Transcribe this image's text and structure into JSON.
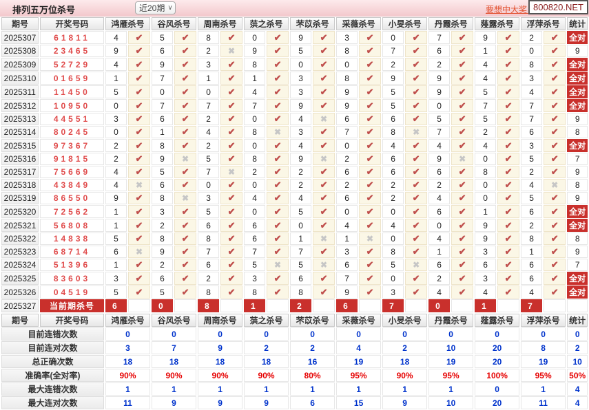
{
  "topbar": {
    "title": "排列五万位杀号",
    "range_value": "近20期",
    "promo_text": "要想中大奖，",
    "site_text": "800820.NET"
  },
  "colors": {
    "accent_red": "#c9302c",
    "win_number_red": "#e04b4b",
    "check_red": "#c0504d",
    "cross_gray": "#c6c6c6",
    "value_blue": "#0033cc",
    "percent_red": "#e60000",
    "topbar_pink": "#f3c9cd"
  },
  "icons": {
    "check": "✔",
    "cross": "✖",
    "chevron": "∨"
  },
  "columns": {
    "period": "期号",
    "numbers": "开奖号码",
    "stat": "统计",
    "killers": [
      "鸿雁杀号",
      "谷风杀号",
      "周南杀号",
      "葓之杀号",
      "芣苡杀号",
      "采薇杀号",
      "小旻杀号",
      "丹霞杀号",
      "薤露杀号",
      "浮萍杀号"
    ]
  },
  "all_correct_label": "全对",
  "rows": [
    {
      "period": "2025307",
      "numbers": "61811",
      "kills": [
        [
          4,
          1
        ],
        [
          5,
          1
        ],
        [
          8,
          1
        ],
        [
          0,
          1
        ],
        [
          9,
          1
        ],
        [
          3,
          1
        ],
        [
          0,
          1
        ],
        [
          7,
          1
        ],
        [
          9,
          1
        ],
        [
          2,
          1
        ]
      ],
      "stat": "全对"
    },
    {
      "period": "2025308",
      "numbers": "23465",
      "kills": [
        [
          9,
          1
        ],
        [
          6,
          1
        ],
        [
          2,
          0
        ],
        [
          9,
          1
        ],
        [
          5,
          1
        ],
        [
          8,
          1
        ],
        [
          7,
          1
        ],
        [
          6,
          1
        ],
        [
          1,
          1
        ],
        [
          0,
          1
        ]
      ],
      "stat": "9"
    },
    {
      "period": "2025309",
      "numbers": "52729",
      "kills": [
        [
          4,
          1
        ],
        [
          9,
          1
        ],
        [
          3,
          1
        ],
        [
          8,
          1
        ],
        [
          0,
          1
        ],
        [
          0,
          1
        ],
        [
          2,
          1
        ],
        [
          2,
          1
        ],
        [
          4,
          1
        ],
        [
          8,
          1
        ]
      ],
      "stat": "全对"
    },
    {
      "period": "2025310",
      "numbers": "01659",
      "kills": [
        [
          1,
          1
        ],
        [
          7,
          1
        ],
        [
          1,
          1
        ],
        [
          1,
          1
        ],
        [
          3,
          1
        ],
        [
          8,
          1
        ],
        [
          9,
          1
        ],
        [
          9,
          1
        ],
        [
          4,
          1
        ],
        [
          3,
          1
        ]
      ],
      "stat": "全对"
    },
    {
      "period": "2025311",
      "numbers": "11450",
      "kills": [
        [
          5,
          1
        ],
        [
          0,
          1
        ],
        [
          0,
          1
        ],
        [
          4,
          1
        ],
        [
          3,
          1
        ],
        [
          9,
          1
        ],
        [
          5,
          1
        ],
        [
          9,
          1
        ],
        [
          5,
          1
        ],
        [
          4,
          1
        ]
      ],
      "stat": "全对"
    },
    {
      "period": "2025312",
      "numbers": "10950",
      "kills": [
        [
          0,
          1
        ],
        [
          7,
          1
        ],
        [
          7,
          1
        ],
        [
          7,
          1
        ],
        [
          9,
          1
        ],
        [
          9,
          1
        ],
        [
          5,
          1
        ],
        [
          0,
          1
        ],
        [
          7,
          1
        ],
        [
          7,
          1
        ]
      ],
      "stat": "全对"
    },
    {
      "period": "2025313",
      "numbers": "44551",
      "kills": [
        [
          3,
          1
        ],
        [
          6,
          1
        ],
        [
          2,
          1
        ],
        [
          0,
          1
        ],
        [
          4,
          0
        ],
        [
          6,
          1
        ],
        [
          6,
          1
        ],
        [
          5,
          1
        ],
        [
          5,
          1
        ],
        [
          7,
          1
        ]
      ],
      "stat": "9"
    },
    {
      "period": "2025314",
      "numbers": "80245",
      "kills": [
        [
          0,
          1
        ],
        [
          1,
          1
        ],
        [
          4,
          1
        ],
        [
          8,
          0
        ],
        [
          3,
          1
        ],
        [
          7,
          1
        ],
        [
          8,
          0
        ],
        [
          7,
          1
        ],
        [
          2,
          1
        ],
        [
          6,
          1
        ]
      ],
      "stat": "8"
    },
    {
      "period": "2025315",
      "numbers": "97367",
      "kills": [
        [
          2,
          1
        ],
        [
          8,
          1
        ],
        [
          2,
          1
        ],
        [
          0,
          1
        ],
        [
          4,
          1
        ],
        [
          0,
          1
        ],
        [
          4,
          1
        ],
        [
          4,
          1
        ],
        [
          4,
          1
        ],
        [
          3,
          1
        ]
      ],
      "stat": "全对"
    },
    {
      "period": "2025316",
      "numbers": "91815",
      "kills": [
        [
          2,
          1
        ],
        [
          9,
          0
        ],
        [
          5,
          1
        ],
        [
          8,
          1
        ],
        [
          9,
          0
        ],
        [
          2,
          1
        ],
        [
          6,
          1
        ],
        [
          9,
          0
        ],
        [
          0,
          1
        ],
        [
          5,
          1
        ]
      ],
      "stat": "7"
    },
    {
      "period": "2025317",
      "numbers": "75669",
      "kills": [
        [
          4,
          1
        ],
        [
          5,
          1
        ],
        [
          7,
          0
        ],
        [
          2,
          1
        ],
        [
          2,
          1
        ],
        [
          6,
          1
        ],
        [
          6,
          1
        ],
        [
          6,
          1
        ],
        [
          8,
          1
        ],
        [
          2,
          1
        ]
      ],
      "stat": "9"
    },
    {
      "period": "2025318",
      "numbers": "43849",
      "kills": [
        [
          4,
          0
        ],
        [
          6,
          1
        ],
        [
          0,
          1
        ],
        [
          0,
          1
        ],
        [
          2,
          1
        ],
        [
          2,
          1
        ],
        [
          2,
          1
        ],
        [
          2,
          1
        ],
        [
          0,
          1
        ],
        [
          4,
          0
        ]
      ],
      "stat": "8"
    },
    {
      "period": "2025319",
      "numbers": "86550",
      "kills": [
        [
          9,
          1
        ],
        [
          8,
          0
        ],
        [
          3,
          1
        ],
        [
          4,
          1
        ],
        [
          4,
          1
        ],
        [
          6,
          1
        ],
        [
          2,
          1
        ],
        [
          4,
          1
        ],
        [
          0,
          1
        ],
        [
          5,
          1
        ]
      ],
      "stat": "9"
    },
    {
      "period": "2025320",
      "numbers": "72562",
      "kills": [
        [
          1,
          1
        ],
        [
          3,
          1
        ],
        [
          5,
          1
        ],
        [
          0,
          1
        ],
        [
          5,
          1
        ],
        [
          0,
          1
        ],
        [
          0,
          1
        ],
        [
          6,
          1
        ],
        [
          1,
          1
        ],
        [
          6,
          1
        ]
      ],
      "stat": "全对"
    },
    {
      "period": "2025321",
      "numbers": "56808",
      "kills": [
        [
          1,
          1
        ],
        [
          2,
          1
        ],
        [
          6,
          1
        ],
        [
          6,
          1
        ],
        [
          0,
          1
        ],
        [
          4,
          1
        ],
        [
          4,
          1
        ],
        [
          0,
          1
        ],
        [
          9,
          1
        ],
        [
          2,
          1
        ]
      ],
      "stat": "全对"
    },
    {
      "period": "2025322",
      "numbers": "14838",
      "kills": [
        [
          5,
          1
        ],
        [
          8,
          1
        ],
        [
          8,
          1
        ],
        [
          6,
          1
        ],
        [
          1,
          0
        ],
        [
          1,
          0
        ],
        [
          0,
          1
        ],
        [
          4,
          1
        ],
        [
          9,
          1
        ],
        [
          8,
          1
        ]
      ],
      "stat": "8"
    },
    {
      "period": "2025323",
      "numbers": "68714",
      "kills": [
        [
          6,
          0
        ],
        [
          9,
          1
        ],
        [
          7,
          1
        ],
        [
          7,
          1
        ],
        [
          7,
          1
        ],
        [
          3,
          1
        ],
        [
          8,
          1
        ],
        [
          1,
          1
        ],
        [
          3,
          1
        ],
        [
          1,
          1
        ]
      ],
      "stat": "9"
    },
    {
      "period": "2025324",
      "numbers": "51396",
      "kills": [
        [
          1,
          1
        ],
        [
          2,
          1
        ],
        [
          6,
          1
        ],
        [
          5,
          0
        ],
        [
          5,
          0
        ],
        [
          6,
          1
        ],
        [
          5,
          0
        ],
        [
          6,
          1
        ],
        [
          6,
          1
        ],
        [
          6,
          1
        ]
      ],
      "stat": "7"
    },
    {
      "period": "2025325",
      "numbers": "83603",
      "kills": [
        [
          3,
          1
        ],
        [
          6,
          1
        ],
        [
          2,
          1
        ],
        [
          3,
          1
        ],
        [
          6,
          1
        ],
        [
          7,
          1
        ],
        [
          0,
          1
        ],
        [
          2,
          1
        ],
        [
          3,
          1
        ],
        [
          6,
          1
        ]
      ],
      "stat": "全对"
    },
    {
      "period": "2025326",
      "numbers": "04519",
      "kills": [
        [
          5,
          1
        ],
        [
          5,
          1
        ],
        [
          8,
          1
        ],
        [
          8,
          1
        ],
        [
          8,
          1
        ],
        [
          9,
          1
        ],
        [
          3,
          1
        ],
        [
          4,
          1
        ],
        [
          4,
          1
        ],
        [
          4,
          1
        ]
      ],
      "stat": "全对"
    }
  ],
  "current": {
    "period": "2025327",
    "label": "当前期杀号",
    "kills": [
      6,
      0,
      8,
      1,
      2,
      6,
      7,
      0,
      1,
      7
    ]
  },
  "summary": [
    {
      "label": "目前连错次数",
      "values": [
        "0",
        "0",
        "0",
        "0",
        "0",
        "0",
        "0",
        "0",
        "0",
        "0"
      ],
      "stat": "0",
      "color": "blue"
    },
    {
      "label": "目前连对次数",
      "values": [
        "3",
        "7",
        "9",
        "2",
        "2",
        "4",
        "2",
        "10",
        "20",
        "8"
      ],
      "stat": "2",
      "color": "blue"
    },
    {
      "label": "总正确次数",
      "values": [
        "18",
        "18",
        "18",
        "18",
        "16",
        "19",
        "18",
        "19",
        "20",
        "19"
      ],
      "stat": "10",
      "color": "blue"
    },
    {
      "label": "准确率(全对率)",
      "values": [
        "90%",
        "90%",
        "90%",
        "90%",
        "80%",
        "95%",
        "90%",
        "95%",
        "100%",
        "95%"
      ],
      "stat": "50%",
      "color": "red"
    },
    {
      "label": "最大连错次数",
      "values": [
        "1",
        "1",
        "1",
        "1",
        "1",
        "1",
        "1",
        "1",
        "0",
        "1"
      ],
      "stat": "4",
      "color": "blue"
    },
    {
      "label": "最大连对次数",
      "values": [
        "11",
        "9",
        "9",
        "9",
        "6",
        "15",
        "9",
        "10",
        "20",
        "11"
      ],
      "stat": "4",
      "color": "blue"
    }
  ]
}
